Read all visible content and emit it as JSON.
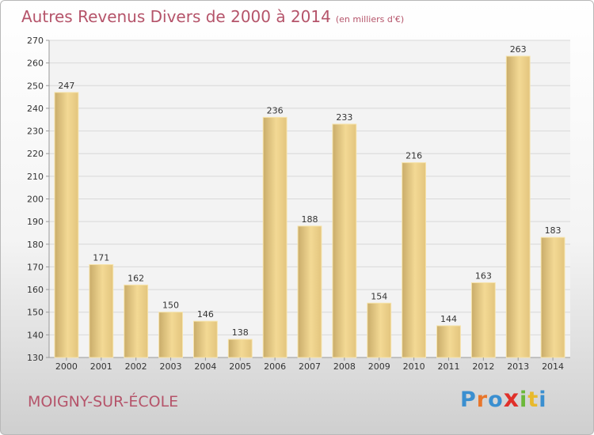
{
  "chart_data": {
    "type": "bar",
    "title": "Autres Revenus Divers de 2000 à 2014",
    "subtitle": "(en milliers d'€)",
    "categories": [
      "2000",
      "2001",
      "2002",
      "2003",
      "2004",
      "2005",
      "2006",
      "2007",
      "2008",
      "2009",
      "2010",
      "2011",
      "2012",
      "2013",
      "2014"
    ],
    "values": [
      247,
      171,
      162,
      150,
      146,
      138,
      236,
      188,
      233,
      154,
      216,
      144,
      163,
      263,
      183
    ],
    "ylim": [
      130,
      270
    ],
    "yticks": [
      130,
      140,
      150,
      160,
      170,
      180,
      190,
      200,
      210,
      220,
      230,
      240,
      250,
      260,
      270
    ],
    "grid": true,
    "bar_color": "#e8cc82",
    "title_color": "#b5546a"
  },
  "footer": {
    "place": "MOIGNY-SUR-ÉCOLE",
    "logo_letters": [
      "P",
      "r",
      "o",
      "x",
      "i",
      "t",
      "i"
    ],
    "logo_colors": [
      "#3a8fd0",
      "#e8762b",
      "#3a8fd0",
      "#e0302a",
      "#6cb83a",
      "#e8b92b",
      "#3a8fd0"
    ]
  }
}
